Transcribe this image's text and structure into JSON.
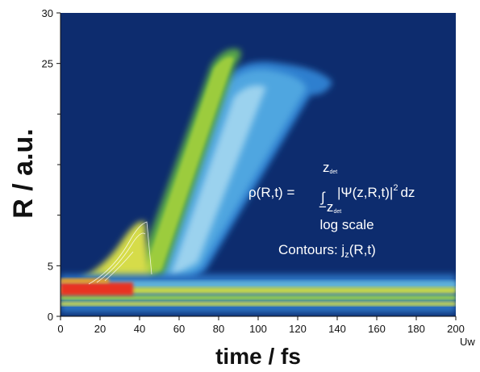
{
  "chart_data": {
    "type": "heatmap",
    "x_label": "time / fs",
    "y_label": "R / a.u.",
    "xlim": [
      0,
      200
    ],
    "ylim": [
      0,
      30
    ],
    "xticks": [
      0,
      20,
      40,
      60,
      80,
      100,
      120,
      140,
      160,
      180,
      200
    ],
    "yticks": [
      0,
      5,
      25,
      30
    ],
    "yminor": [
      10,
      15,
      20
    ],
    "annotations": {
      "formula": {
        "lhs": "ρ(R,t) =",
        "integral": "∫",
        "upper": "z",
        "upper_sub": "det",
        "lower": "−z",
        "lower_sub": "det",
        "integrand": "|Ψ(z,R,t)|",
        "power": "2",
        "tail": "dz"
      },
      "scale": "log scale",
      "contours": {
        "text": "Contours: j",
        "sub": "z",
        "tail": "(R,t)"
      }
    },
    "edge_text": "Uw"
  }
}
